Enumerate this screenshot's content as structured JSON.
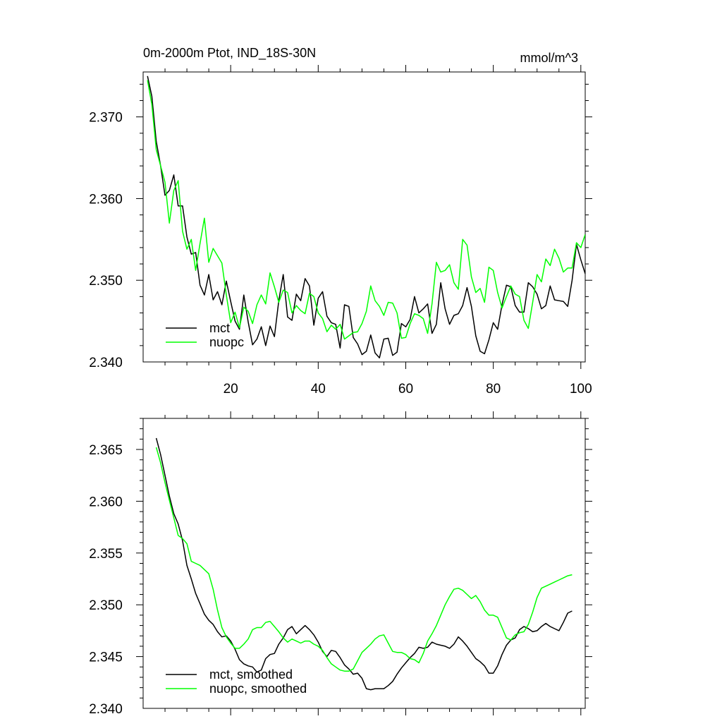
{
  "chart_data": [
    {
      "type": "line",
      "title": "0m-2000m Ptot, IND_18S-30N",
      "units": "mmol/m^3",
      "xlim": [
        0,
        101
      ],
      "ylim": [
        2.34,
        2.3755
      ],
      "xticks": [
        20,
        40,
        60,
        80,
        100
      ],
      "xtick_labels": [
        "20",
        "40",
        "60",
        "80",
        "100"
      ],
      "yticks": [
        2.34,
        2.35,
        2.36,
        2.37
      ],
      "ytick_labels": [
        "2.340",
        "2.350",
        "2.360",
        "2.370"
      ],
      "legend_position": "bottom-left",
      "grid": false,
      "x": [
        1,
        2,
        3,
        4,
        5,
        6,
        7,
        8,
        9,
        10,
        11,
        12,
        13,
        14,
        15,
        16,
        17,
        18,
        19,
        20,
        21,
        22,
        23,
        24,
        25,
        26,
        27,
        28,
        29,
        30,
        31,
        32,
        33,
        34,
        35,
        36,
        37,
        38,
        39,
        40,
        41,
        42,
        43,
        44,
        45,
        46,
        47,
        48,
        49,
        50,
        51,
        52,
        53,
        54,
        55,
        56,
        57,
        58,
        59,
        60,
        61,
        62,
        63,
        64,
        65,
        66,
        67,
        68,
        69,
        70,
        71,
        72,
        73,
        74,
        75,
        76,
        77,
        78,
        79,
        80,
        81,
        82,
        83,
        84,
        85,
        86,
        87,
        88,
        89,
        90,
        91,
        92,
        93,
        94,
        95,
        96,
        97,
        98,
        99,
        100,
        101
      ],
      "series": [
        {
          "name": "mct",
          "color": "#000000",
          "values": [
            2.375,
            2.3725,
            2.367,
            2.364,
            2.3604,
            2.361,
            2.3629,
            2.3591,
            2.3591,
            2.3553,
            2.3532,
            2.3534,
            2.3494,
            2.3482,
            2.3507,
            2.3476,
            2.3486,
            2.347,
            2.3499,
            2.3474,
            2.345,
            2.344,
            2.3482,
            2.3449,
            2.3421,
            2.3428,
            2.3443,
            2.342,
            2.3444,
            2.3431,
            2.3475,
            2.3507,
            2.3455,
            2.3451,
            2.3483,
            2.3475,
            2.3502,
            2.3493,
            2.3445,
            2.3478,
            2.3486,
            2.3456,
            2.3448,
            2.3446,
            2.3417,
            2.347,
            2.3468,
            2.343,
            2.3422,
            2.3409,
            2.3413,
            2.3433,
            2.3411,
            2.3405,
            2.3428,
            2.3429,
            2.3408,
            2.3412,
            2.3447,
            2.3443,
            2.3452,
            2.348,
            2.346,
            2.3465,
            2.3471,
            2.3435,
            2.3446,
            2.3497,
            2.3465,
            2.3446,
            2.3457,
            2.3459,
            2.3469,
            2.3491,
            2.3468,
            2.3432,
            2.3413,
            2.341,
            2.3427,
            2.3448,
            2.344,
            2.347,
            2.3494,
            2.3492,
            2.3469,
            2.3461,
            2.3461,
            2.3497,
            2.3492,
            2.3483,
            2.3465,
            2.3469,
            2.3493,
            2.3476,
            2.3475,
            2.3474,
            2.3468,
            2.35,
            2.3544,
            2.3525,
            2.3508
          ]
        },
        {
          "name": "nuopc",
          "color": "#00ff00",
          "values": [
            2.3745,
            2.3715,
            2.366,
            2.364,
            2.362,
            2.357,
            2.361,
            2.3622,
            2.356,
            2.3538,
            2.355,
            2.3512,
            2.3545,
            2.3576,
            2.3522,
            2.3539,
            2.353,
            2.3521,
            2.3482,
            2.3448,
            2.3461,
            2.3442,
            2.3467,
            2.3462,
            2.3447,
            2.347,
            2.3482,
            2.3471,
            2.3509,
            2.3492,
            2.3473,
            2.3488,
            2.3485,
            2.346,
            2.3469,
            2.3463,
            2.3459,
            2.3484,
            2.348,
            2.346,
            2.3453,
            2.3437,
            2.3445,
            2.344,
            2.3446,
            2.3428,
            2.3432,
            2.3436,
            2.3437,
            2.3447,
            2.3462,
            2.3493,
            2.3475,
            2.3468,
            2.3457,
            2.3473,
            2.3472,
            2.346,
            2.3429,
            2.343,
            2.3447,
            2.3459,
            2.3457,
            2.3453,
            2.3435,
            2.3471,
            2.3522,
            2.351,
            2.3512,
            2.3519,
            2.3497,
            2.3489,
            2.355,
            2.3543,
            2.3504,
            2.3485,
            2.349,
            2.3473,
            2.3516,
            2.3512,
            2.3485,
            2.3466,
            2.348,
            2.3493,
            2.3483,
            2.348,
            2.3451,
            2.3441,
            2.3473,
            2.3507,
            2.3498,
            2.3526,
            2.3518,
            2.3538,
            2.3527,
            2.351,
            2.3515,
            2.3515,
            2.3546,
            2.354,
            2.3556
          ]
        }
      ]
    },
    {
      "type": "line",
      "xlim": [
        0,
        101
      ],
      "ylim": [
        2.34,
        2.368
      ],
      "xticks": [
        20,
        40,
        60,
        80,
        100
      ],
      "yticks": [
        2.34,
        2.345,
        2.35,
        2.355,
        2.36,
        2.365
      ],
      "ytick_labels": [
        "2.340",
        "2.345",
        "2.350",
        "2.355",
        "2.360",
        "2.365"
      ],
      "legend_position": "bottom-left",
      "grid": false,
      "x": [
        3,
        4,
        5,
        6,
        7,
        8,
        9,
        10,
        11,
        12,
        13,
        14,
        15,
        16,
        17,
        18,
        19,
        20,
        21,
        22,
        23,
        24,
        25,
        26,
        27,
        28,
        29,
        30,
        31,
        32,
        33,
        34,
        35,
        36,
        37,
        38,
        39,
        40,
        41,
        42,
        43,
        44,
        45,
        46,
        47,
        48,
        49,
        50,
        51,
        52,
        53,
        54,
        55,
        56,
        57,
        58,
        59,
        60,
        61,
        62,
        63,
        64,
        65,
        66,
        67,
        68,
        69,
        70,
        71,
        72,
        73,
        74,
        75,
        76,
        77,
        78,
        79,
        80,
        81,
        82,
        83,
        84,
        85,
        86,
        87,
        88,
        89,
        90,
        91,
        92,
        93,
        94,
        95,
        96,
        97,
        98
      ],
      "series": [
        {
          "name": "mct, smoothed",
          "color": "#000000",
          "values": [
            2.3661,
            2.3645,
            2.3625,
            2.3605,
            2.3588,
            2.3578,
            2.3562,
            2.3538,
            2.3525,
            2.3511,
            2.3501,
            2.3491,
            2.3485,
            2.3481,
            2.3474,
            2.3469,
            2.347,
            2.3465,
            2.3457,
            2.3447,
            2.3443,
            2.3441,
            2.344,
            2.3435,
            2.3437,
            2.3448,
            2.3452,
            2.3453,
            2.3462,
            2.3468,
            2.3476,
            2.3479,
            2.3472,
            2.3476,
            2.348,
            2.3476,
            2.3471,
            2.3464,
            2.3455,
            2.345,
            2.3456,
            2.3455,
            2.3449,
            2.3442,
            2.3438,
            2.3433,
            2.3434,
            2.3429,
            2.3419,
            2.3418,
            2.3419,
            2.3419,
            2.3419,
            2.3422,
            2.3426,
            2.3433,
            2.3439,
            2.3444,
            2.3449,
            2.3453,
            2.3459,
            2.3458,
            2.3459,
            2.3464,
            2.3462,
            2.3461,
            2.346,
            2.3458,
            2.3462,
            2.3469,
            2.3465,
            2.346,
            2.3454,
            2.3448,
            2.3445,
            2.3441,
            2.3434,
            2.3434,
            2.3441,
            2.3452,
            2.3461,
            2.3466,
            2.3468,
            2.3476,
            2.3479,
            2.3477,
            2.3474,
            2.3475,
            2.3479,
            2.3482,
            2.3479,
            2.3477,
            2.3475,
            2.3483,
            2.3492,
            2.3494
          ]
        },
        {
          "name": "nuopc, smoothed",
          "color": "#00ff00",
          "values": [
            2.3652,
            2.3637,
            2.3618,
            2.3601,
            2.3584,
            2.3567,
            2.3564,
            2.3559,
            2.3542,
            2.354,
            2.3538,
            2.3534,
            2.353,
            2.3515,
            2.3495,
            2.3478,
            2.3469,
            2.3463,
            2.3458,
            2.3458,
            2.3462,
            2.3467,
            2.3476,
            2.3478,
            2.3478,
            2.3483,
            2.3484,
            2.3479,
            2.3474,
            2.3468,
            2.3464,
            2.3467,
            2.3465,
            2.3463,
            2.3465,
            2.3465,
            2.3462,
            2.346,
            2.3456,
            2.3449,
            2.3443,
            2.344,
            2.3437,
            2.3436,
            2.3436,
            2.3438,
            2.3446,
            2.3454,
            2.3458,
            2.3462,
            2.3467,
            2.347,
            2.3471,
            2.3463,
            2.3455,
            2.3454,
            2.3454,
            2.3452,
            2.3448,
            2.3447,
            2.3444,
            2.3453,
            2.3465,
            2.3472,
            2.348,
            2.349,
            2.35,
            2.3508,
            2.3515,
            2.3516,
            2.3514,
            2.351,
            2.3506,
            2.3509,
            2.3503,
            2.3495,
            2.349,
            2.349,
            2.3488,
            2.3478,
            2.3468,
            2.3466,
            2.3471,
            2.3473,
            2.3474,
            2.3481,
            2.3493,
            2.3507,
            2.3516,
            2.3518,
            2.352,
            2.3522,
            2.3524,
            2.3526,
            2.3528,
            2.3529
          ]
        }
      ]
    }
  ]
}
